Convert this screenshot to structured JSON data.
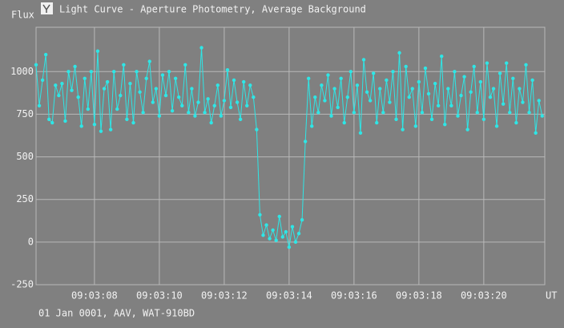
{
  "chart_data": {
    "type": "line",
    "title": "Light Curve - Aperture Photometry, Average Background",
    "y_label": "Flux",
    "x_label": "UT",
    "footer": "01 Jan 0001, AAV, WAT-910BD",
    "grid": true,
    "xlim": [
      6.2,
      21.88
    ],
    "ylim": [
      -250,
      1260
    ],
    "xticks": [
      {
        "value": 8,
        "label": "09:03:08"
      },
      {
        "value": 10,
        "label": "09:03:10"
      },
      {
        "value": 12,
        "label": "09:03:12"
      },
      {
        "value": 14,
        "label": "09:03:14"
      },
      {
        "value": 16,
        "label": "09:03:16"
      },
      {
        "value": 18,
        "label": "09:03:18"
      },
      {
        "value": 20,
        "label": "09:03:20"
      }
    ],
    "yticks": [
      -250,
      0,
      250,
      500,
      750,
      1000
    ],
    "x": [
      6.2,
      6.3,
      6.4,
      6.5,
      6.6,
      6.7,
      6.8,
      6.9,
      7.0,
      7.1,
      7.2,
      7.3,
      7.4,
      7.5,
      7.6,
      7.7,
      7.8,
      7.9,
      8.0,
      8.1,
      8.2,
      8.3,
      8.4,
      8.5,
      8.6,
      8.7,
      8.8,
      8.9,
      9.0,
      9.1,
      9.2,
      9.3,
      9.4,
      9.5,
      9.6,
      9.7,
      9.8,
      9.9,
      10.0,
      10.1,
      10.2,
      10.3,
      10.4,
      10.5,
      10.6,
      10.7,
      10.8,
      10.9,
      11.0,
      11.1,
      11.2,
      11.3,
      11.4,
      11.5,
      11.6,
      11.7,
      11.8,
      11.9,
      12.0,
      12.1,
      12.2,
      12.3,
      12.4,
      12.5,
      12.6,
      12.7,
      12.8,
      12.9,
      13.0,
      13.1,
      13.2,
      13.3,
      13.4,
      13.5,
      13.6,
      13.7,
      13.8,
      13.9,
      14.0,
      14.1,
      14.2,
      14.3,
      14.4,
      14.5,
      14.6,
      14.7,
      14.8,
      14.9,
      15.0,
      15.1,
      15.2,
      15.3,
      15.4,
      15.5,
      15.6,
      15.7,
      15.8,
      15.9,
      16.0,
      16.1,
      16.2,
      16.3,
      16.4,
      16.5,
      16.6,
      16.7,
      16.8,
      16.9,
      17.0,
      17.1,
      17.2,
      17.3,
      17.4,
      17.5,
      17.6,
      17.7,
      17.8,
      17.9,
      18.0,
      18.1,
      18.2,
      18.3,
      18.4,
      18.5,
      18.6,
      18.7,
      18.8,
      18.9,
      19.0,
      19.1,
      19.2,
      19.3,
      19.4,
      19.5,
      19.6,
      19.7,
      19.8,
      19.9,
      20.0,
      20.1,
      20.2,
      20.3,
      20.4,
      20.5,
      20.6,
      20.7,
      20.8,
      20.9,
      21.0,
      21.1,
      21.2,
      21.3,
      21.4,
      21.5,
      21.6,
      21.7,
      21.8
    ],
    "series": [
      {
        "color": "#2ee6e6",
        "values": [
          1040,
          800,
          950,
          1100,
          720,
          700,
          920,
          860,
          930,
          710,
          1000,
          890,
          1030,
          850,
          680,
          960,
          780,
          1000,
          690,
          1120,
          650,
          900,
          940,
          660,
          1000,
          780,
          860,
          1040,
          720,
          930,
          700,
          1000,
          880,
          760,
          960,
          1060,
          820,
          900,
          740,
          980,
          860,
          1000,
          770,
          960,
          850,
          800,
          1040,
          760,
          900,
          740,
          820,
          1140,
          760,
          840,
          700,
          800,
          920,
          740,
          830,
          1010,
          790,
          950,
          820,
          720,
          940,
          800,
          920,
          850,
          660,
          160,
          40,
          100,
          20,
          70,
          10,
          150,
          30,
          60,
          -30,
          90,
          0,
          50,
          130,
          590,
          960,
          680,
          850,
          760,
          920,
          830,
          980,
          740,
          900,
          790,
          960,
          700,
          850,
          1000,
          760,
          920,
          640,
          1070,
          880,
          830,
          990,
          700,
          900,
          760,
          950,
          820,
          1000,
          720,
          1110,
          660,
          1030,
          850,
          900,
          680,
          940,
          760,
          1020,
          870,
          720,
          930,
          800,
          1090,
          690,
          900,
          800,
          1000,
          740,
          860,
          970,
          660,
          880,
          1030,
          760,
          940,
          720,
          1050,
          850,
          900,
          680,
          990,
          810,
          1050,
          760,
          960,
          700,
          900,
          820,
          1040,
          760,
          950,
          640,
          830,
          740
        ]
      }
    ]
  }
}
